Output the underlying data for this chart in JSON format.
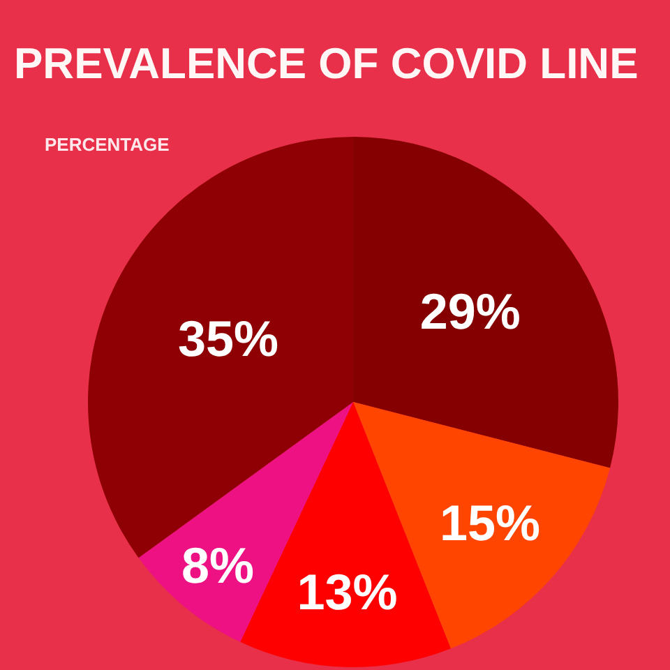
{
  "chart_data": {
    "type": "pie",
    "title": "PREVALENCE OF COVID LINE",
    "subtitle": "PERCENTAGE",
    "categories": [
      null,
      null,
      null,
      null,
      null
    ],
    "values": [
      29,
      15,
      13,
      8,
      35
    ],
    "colors": [
      "#850000",
      "#ff4500",
      "#fe0000",
      "#ee1184",
      "#8e0003"
    ],
    "value_labels": [
      "29%",
      "15%",
      "13%",
      "8%",
      "35%"
    ]
  }
}
